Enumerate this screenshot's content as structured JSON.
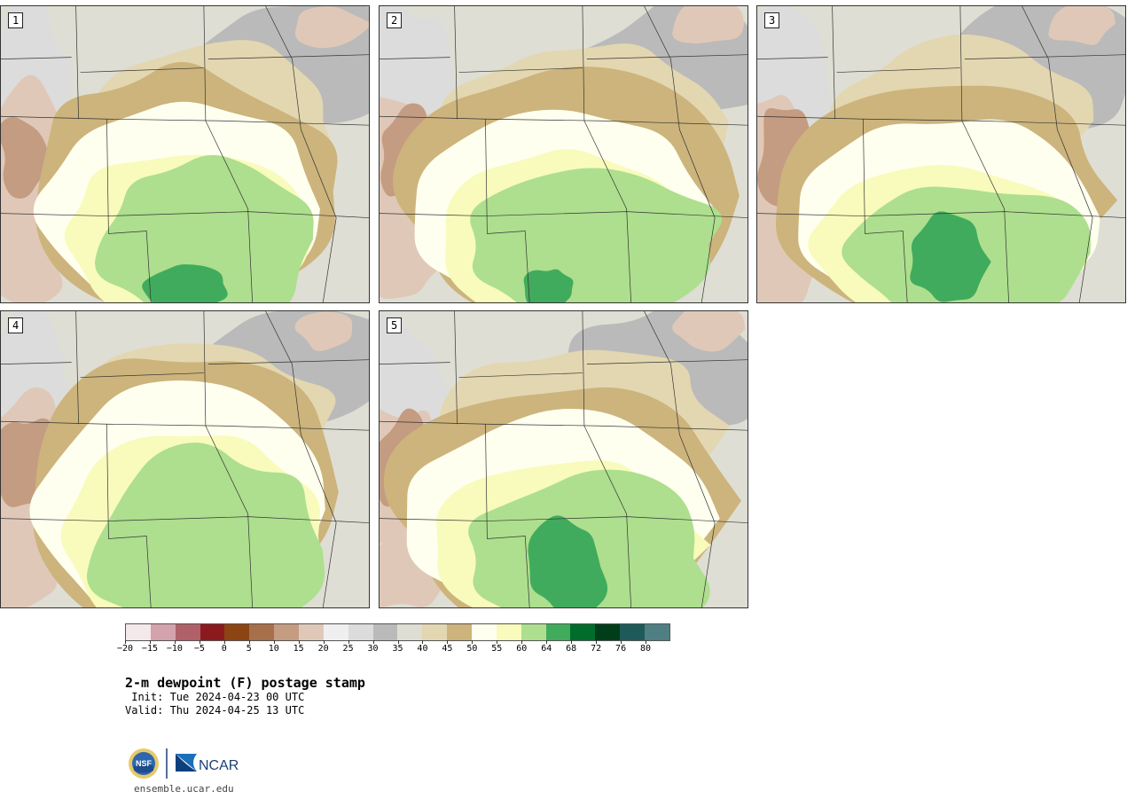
{
  "product": {
    "title": "2-m dewpoint (F) postage stamp",
    "init": " Init: Tue 2024-04-23 00 UTC",
    "valid": "Valid: Thu 2024-04-25 13 UTC"
  },
  "panels": [
    {
      "label": "1",
      "variant": 1
    },
    {
      "label": "2",
      "variant": 2
    },
    {
      "label": "3",
      "variant": 3
    },
    {
      "label": "4",
      "variant": 4
    },
    {
      "label": "5",
      "variant": 5
    }
  ],
  "colorbar": {
    "colors": [
      "#f3e8ea",
      "#d4a2aa",
      "#b06068",
      "#8b1a1f",
      "#8c4512",
      "#a86f4b",
      "#c49c82",
      "#e0c8b8",
      "#efefef",
      "#dcdcdc",
      "#bababa",
      "#deded4",
      "#e3d7b1",
      "#ccb47c",
      "#fffff0",
      "#f8fbbb",
      "#addf8e",
      "#41ab5d",
      "#006d2c",
      "#003e1a",
      "#1f5a5a",
      "#4f7f82"
    ],
    "tick_labels": [
      "−20",
      "−15",
      "−10",
      "−5",
      "0",
      "5",
      "10",
      "15",
      "20",
      "25",
      "30",
      "35",
      "40",
      "45",
      "50",
      "55",
      "60",
      "64",
      "68",
      "72",
      "76",
      "80"
    ]
  },
  "footer": {
    "logo_left_text": "NSF",
    "logo_right_text": "NCAR",
    "site": "ensemble.ucar.edu"
  }
}
